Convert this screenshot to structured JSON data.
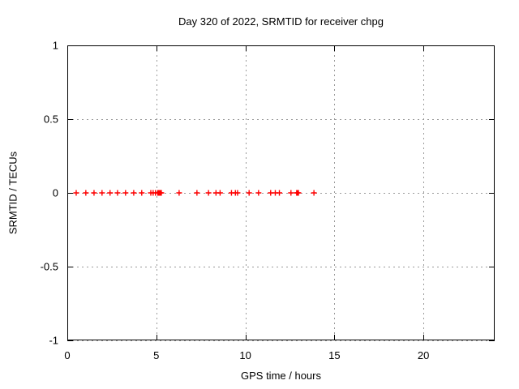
{
  "window": {
    "background": "#ffffff"
  },
  "chart_data": {
    "type": "scatter",
    "title": "Day 320 of 2022, SRMTID for receiver chpg",
    "xlabel": "GPS time / hours",
    "ylabel": "SRMTID / TECUs",
    "xlim": [
      0,
      24
    ],
    "ylim": [
      -1,
      1
    ],
    "xticks": [
      0,
      5,
      10,
      15,
      20
    ],
    "xtick_labels": [
      "0",
      "5",
      "10",
      "15",
      "20"
    ],
    "yticks": [
      -1,
      -0.5,
      0,
      0.5,
      1
    ],
    "ytick_labels": [
      "-1",
      "-0.5",
      "0",
      "0.5",
      "1"
    ],
    "grid": "dotted, at every major tick",
    "legend": "none",
    "series": [
      {
        "name": "SRMTID",
        "marker": "plus",
        "color": "#ff0000",
        "x": [
          0.5,
          1.04,
          1.5,
          1.95,
          2.4,
          2.82,
          3.27,
          3.73,
          4.18,
          4.69,
          4.82,
          4.95,
          5.08,
          5.13,
          5.18,
          5.23,
          5.28,
          6.28,
          7.28,
          7.93,
          8.35,
          8.58,
          9.22,
          9.44,
          9.56,
          10.21,
          10.74,
          11.42,
          11.68,
          11.91,
          12.56,
          12.88,
          12.93,
          12.98,
          13.85
        ],
        "y": [
          0,
          0,
          0,
          0,
          0,
          0,
          0,
          0,
          0,
          0,
          0,
          0,
          0,
          0,
          0,
          0,
          0,
          0,
          0,
          0,
          0,
          0,
          0,
          0,
          0,
          0,
          0,
          0,
          0,
          0,
          0,
          0,
          0,
          0,
          0
        ]
      }
    ]
  },
  "colors": {
    "marker": "#ff0000",
    "grid": "#9a9a9a",
    "axis": "#000000",
    "background": "#ffffff"
  }
}
